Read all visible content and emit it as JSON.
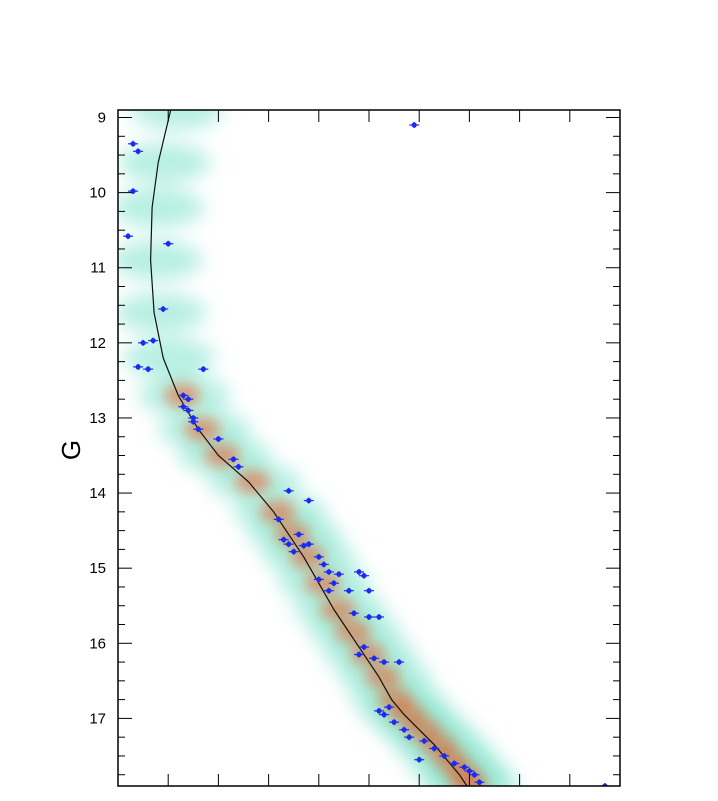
{
  "chart_data": {
    "type": "scatter",
    "title": "",
    "xlabel": "",
    "ylabel": "G",
    "x_tick_labels_visible": false,
    "y_inverted": true,
    "ylim": [
      17.9,
      8.9
    ],
    "xlim": [
      0,
      1
    ],
    "y_ticks": [
      "9",
      "10",
      "11",
      "12",
      "13",
      "14",
      "15",
      "16",
      "17"
    ],
    "background": "density",
    "colors": {
      "points": "#1a2cf2",
      "curve": "#111111",
      "density_low": "#7fe3cc",
      "density_mid": "#b4803a",
      "density_high": "#f0501a"
    },
    "curve": {
      "name": "",
      "x": [
        0.105,
        0.08,
        0.068,
        0.065,
        0.072,
        0.09,
        0.12,
        0.16,
        0.2,
        0.26,
        0.31,
        0.34,
        0.37,
        0.4,
        0.43,
        0.46,
        0.49,
        0.52,
        0.545,
        0.57,
        0.6,
        0.63,
        0.655,
        0.68,
        0.695
      ],
      "y": [
        8.9,
        9.6,
        10.2,
        10.9,
        11.6,
        12.2,
        12.7,
        13.15,
        13.5,
        13.85,
        14.25,
        14.55,
        14.85,
        15.2,
        15.55,
        15.85,
        16.15,
        16.45,
        16.75,
        16.95,
        17.15,
        17.35,
        17.55,
        17.75,
        17.9
      ]
    },
    "points": {
      "x": [
        0.59,
        0.03,
        0.04,
        0.03,
        0.02,
        0.1,
        0.09,
        0.07,
        0.05,
        0.04,
        0.06,
        0.13,
        0.13,
        0.14,
        0.14,
        0.15,
        0.15,
        0.16,
        0.17,
        0.2,
        0.23,
        0.24,
        0.34,
        0.38,
        0.32,
        0.36,
        0.33,
        0.34,
        0.37,
        0.35,
        0.38,
        0.4,
        0.41,
        0.42,
        0.44,
        0.4,
        0.43,
        0.42,
        0.46,
        0.48,
        0.49,
        0.5,
        0.47,
        0.5,
        0.52,
        0.48,
        0.51,
        0.53,
        0.56,
        0.49,
        0.54,
        0.52,
        0.53,
        0.55,
        0.57,
        0.58,
        0.61,
        0.63,
        0.65,
        0.6,
        0.67,
        0.69,
        0.7,
        0.71,
        0.72,
        0.97
      ],
      "y": [
        9.1,
        9.35,
        9.45,
        9.98,
        10.58,
        10.68,
        11.55,
        11.97,
        12.0,
        12.32,
        12.35,
        12.7,
        12.85,
        12.75,
        12.9,
        13.0,
        13.05,
        13.15,
        12.35,
        13.28,
        13.55,
        13.65,
        13.97,
        14.1,
        14.35,
        14.55,
        14.62,
        14.68,
        14.7,
        14.78,
        14.68,
        14.85,
        14.95,
        15.05,
        15.08,
        15.15,
        15.2,
        15.3,
        15.3,
        15.05,
        15.1,
        15.3,
        15.6,
        15.65,
        15.65,
        16.15,
        16.2,
        16.25,
        16.25,
        16.05,
        16.85,
        16.9,
        16.95,
        17.05,
        17.15,
        17.25,
        17.3,
        17.4,
        17.5,
        17.55,
        17.6,
        17.65,
        17.7,
        17.75,
        17.85,
        17.9
      ]
    }
  }
}
